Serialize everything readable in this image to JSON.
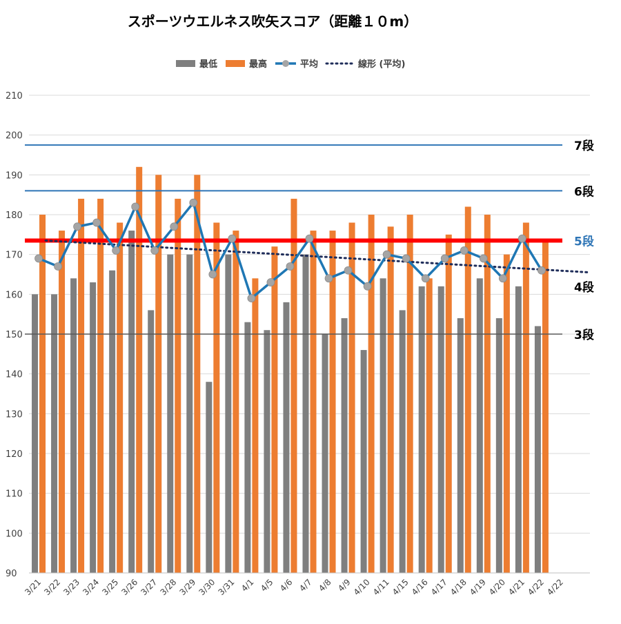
{
  "chart_data": {
    "type": "bar",
    "title": "スポーツウエルネス吹矢スコア（距離１０m）",
    "categories": [
      "3/21",
      "3/22",
      "3/23",
      "3/24",
      "3/25",
      "3/26",
      "3/27",
      "3/28",
      "3/29",
      "3/30",
      "3/31",
      "4/1",
      "4/5",
      "4/6",
      "4/7",
      "4/8",
      "4/9",
      "4/10",
      "4/11",
      "4/15",
      "4/16",
      "4/17",
      "4/18",
      "4/19",
      "4/20",
      "4/21",
      "4/22",
      "4/22"
    ],
    "ylim": [
      90,
      210
    ],
    "yticks": [
      90,
      100,
      110,
      120,
      130,
      140,
      150,
      160,
      170,
      180,
      190,
      200,
      210
    ],
    "grid": true,
    "legend_position": "top",
    "series": [
      {
        "name": "最低",
        "type": "bar",
        "color": "#7f7f7f",
        "values": [
          160,
          160,
          164,
          163,
          166,
          176,
          156,
          170,
          170,
          138,
          170,
          153,
          151,
          158,
          170,
          150,
          154,
          146,
          164,
          156,
          162,
          162,
          154,
          164,
          154,
          162,
          152,
          null
        ]
      },
      {
        "name": "最高",
        "type": "bar",
        "color": "#ed7d31",
        "values": [
          180,
          176,
          184,
          184,
          178,
          192,
          190,
          184,
          190,
          178,
          176,
          164,
          172,
          184,
          176,
          176,
          178,
          180,
          177,
          180,
          164,
          175,
          182,
          180,
          170,
          178,
          174,
          null
        ]
      },
      {
        "name": "平均",
        "type": "line",
        "color": "#1f77b4",
        "marker_color": "#a5a5a5",
        "values": [
          169,
          167,
          177,
          178,
          171,
          182,
          171,
          177,
          183,
          165,
          174,
          159,
          163,
          167,
          174,
          164,
          166,
          162,
          170,
          169,
          164,
          169,
          171,
          169,
          164,
          174,
          166,
          null
        ]
      },
      {
        "name": "線形 (平均)",
        "type": "trendline",
        "color": "#1f2d5a",
        "start": 173.5,
        "end": 165.5
      }
    ],
    "reference_lines": [
      {
        "label": "7段",
        "value": 197.5,
        "color": "#2e75b6",
        "label_color": "#000000",
        "width": 2
      },
      {
        "label": "6段",
        "value": 186,
        "color": "#2e75b6",
        "label_color": "#000000",
        "width": 2
      },
      {
        "label": "5段",
        "value": 173.5,
        "color": "#ff0000",
        "label_color": "#2e75b6",
        "width": 6
      },
      {
        "label": "4段",
        "value": 162,
        "color": "none",
        "label_color": "#000000",
        "width": 0
      },
      {
        "label": "3段",
        "value": 150,
        "color": "#595959",
        "label_color": "#000000",
        "width": 1.5
      }
    ]
  }
}
